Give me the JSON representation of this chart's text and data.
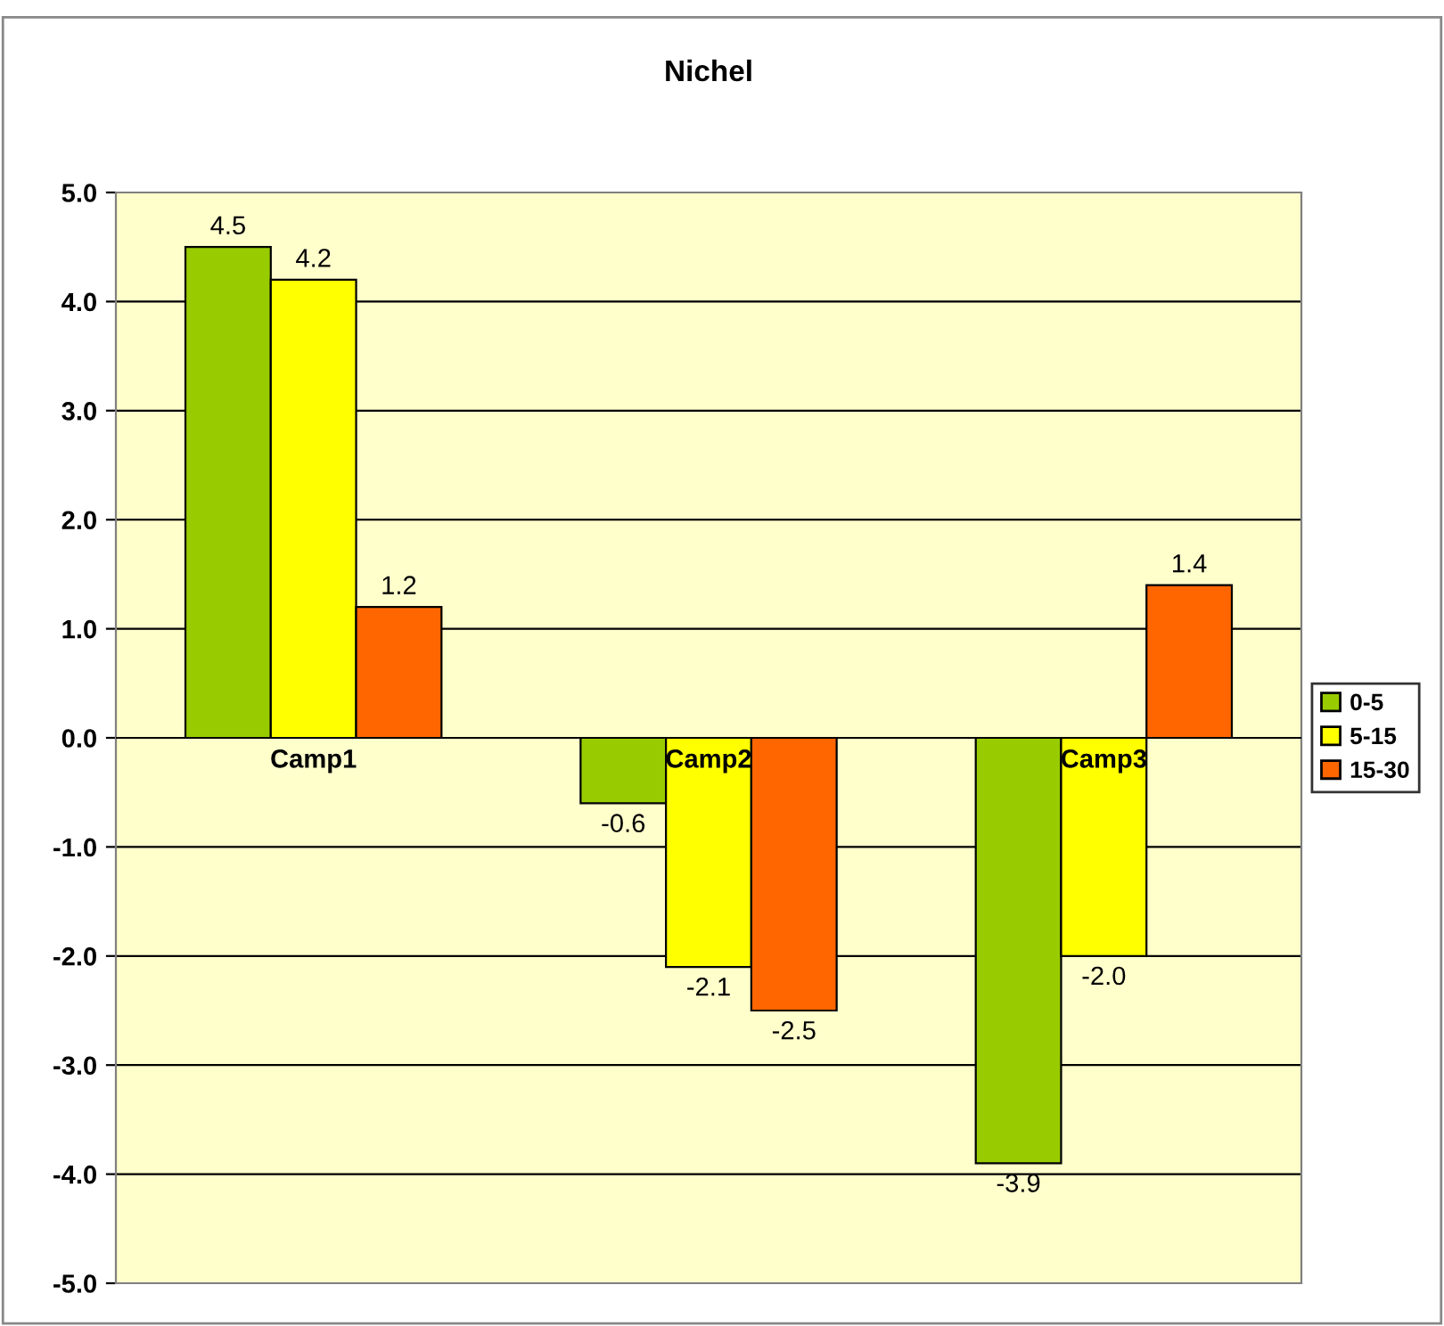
{
  "chart_data": {
    "type": "bar",
    "title": "Nichel",
    "categories": [
      "Camp1",
      "Camp2",
      "Camp3"
    ],
    "series": [
      {
        "name": "0-5",
        "color": "#99cc00",
        "values": [
          4.5,
          -0.6,
          -3.9
        ],
        "value_labels": [
          "4.5",
          "-0.6",
          "-3.9"
        ]
      },
      {
        "name": "5-15",
        "color": "#ffff00",
        "values": [
          4.2,
          -2.1,
          -2.0
        ],
        "value_labels": [
          "4.2",
          "-2.1",
          "-2.0"
        ]
      },
      {
        "name": "15-30",
        "color": "#ff6600",
        "values": [
          1.2,
          -2.5,
          1.4
        ],
        "value_labels": [
          "1.2",
          "-2.5",
          "1.4"
        ]
      }
    ],
    "ylim": [
      -5,
      5
    ],
    "yticks": [
      {
        "value": 5,
        "label": "5.0"
      },
      {
        "value": 4,
        "label": "4.0"
      },
      {
        "value": 3,
        "label": "3.0"
      },
      {
        "value": 2,
        "label": "2.0"
      },
      {
        "value": 1,
        "label": "1.0"
      },
      {
        "value": 0,
        "label": "0.0"
      },
      {
        "value": -1,
        "label": "-1.0"
      },
      {
        "value": -2,
        "label": "-2.0"
      },
      {
        "value": -3,
        "label": "-3.0"
      },
      {
        "value": -4,
        "label": "-4.0"
      },
      {
        "value": -5,
        "label": "-5.0"
      }
    ],
    "grid": "y",
    "legend": "right"
  }
}
